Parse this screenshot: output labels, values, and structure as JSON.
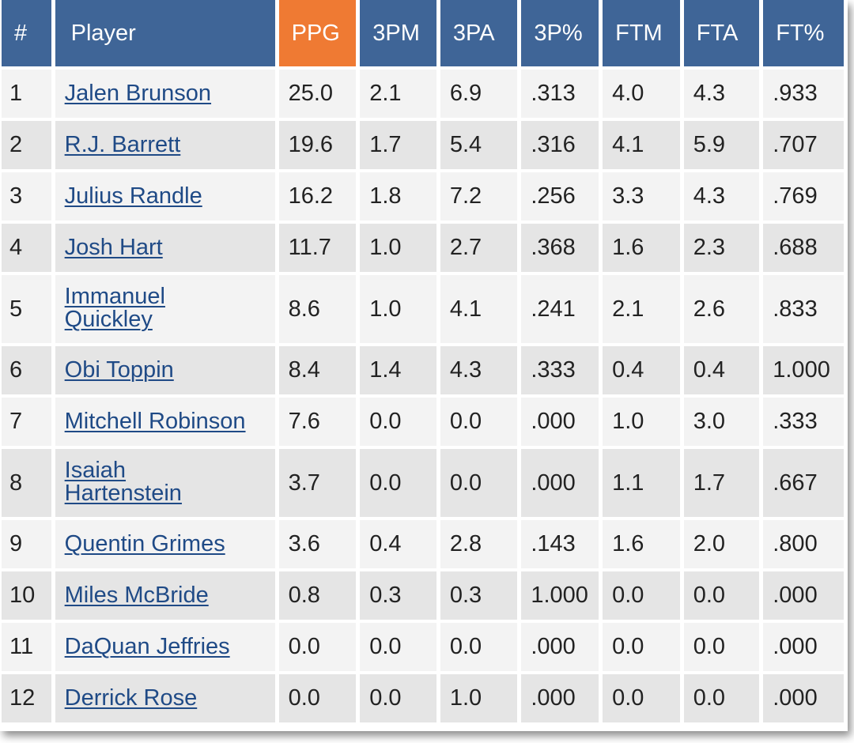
{
  "columns": [
    {
      "key": "num",
      "label": "#"
    },
    {
      "key": "player",
      "label": "Player"
    },
    {
      "key": "ppg",
      "label": "PPG",
      "sorted": true
    },
    {
      "key": "tpm",
      "label": "3PM"
    },
    {
      "key": "tpa",
      "label": "3PA"
    },
    {
      "key": "tp_pct",
      "label": "3P%"
    },
    {
      "key": "ftm",
      "label": "FTM"
    },
    {
      "key": "fta",
      "label": "FTA"
    },
    {
      "key": "ft_pct",
      "label": "FT%"
    }
  ],
  "sort_color": "#ef7a33",
  "header_color": "#3f6597",
  "link_color": "#1f4a86",
  "rows": [
    {
      "num": "1",
      "player": "Jalen Brunson",
      "ppg": "25.0",
      "tpm": "2.1",
      "tpa": "6.9",
      "tp_pct": ".313",
      "ftm": "4.0",
      "fta": "4.3",
      "ft_pct": ".933"
    },
    {
      "num": "2",
      "player": "R.J. Barrett",
      "ppg": "19.6",
      "tpm": "1.7",
      "tpa": "5.4",
      "tp_pct": ".316",
      "ftm": "4.1",
      "fta": "5.9",
      "ft_pct": ".707"
    },
    {
      "num": "3",
      "player": "Julius Randle",
      "ppg": "16.2",
      "tpm": "1.8",
      "tpa": "7.2",
      "tp_pct": ".256",
      "ftm": "3.3",
      "fta": "4.3",
      "ft_pct": ".769"
    },
    {
      "num": "4",
      "player": "Josh Hart",
      "ppg": "11.7",
      "tpm": "1.0",
      "tpa": "2.7",
      "tp_pct": ".368",
      "ftm": "1.6",
      "fta": "2.3",
      "ft_pct": ".688"
    },
    {
      "num": "5",
      "player": "Immanuel Quickley",
      "ppg": "8.6",
      "tpm": "1.0",
      "tpa": "4.1",
      "tp_pct": ".241",
      "ftm": "2.1",
      "fta": "2.6",
      "ft_pct": ".833"
    },
    {
      "num": "6",
      "player": "Obi Toppin",
      "ppg": "8.4",
      "tpm": "1.4",
      "tpa": "4.3",
      "tp_pct": ".333",
      "ftm": "0.4",
      "fta": "0.4",
      "ft_pct": "1.000"
    },
    {
      "num": "7",
      "player": "Mitchell Robinson",
      "ppg": "7.6",
      "tpm": "0.0",
      "tpa": "0.0",
      "tp_pct": ".000",
      "ftm": "1.0",
      "fta": "3.0",
      "ft_pct": ".333"
    },
    {
      "num": "8",
      "player": "Isaiah Hartenstein",
      "ppg": "3.7",
      "tpm": "0.0",
      "tpa": "0.0",
      "tp_pct": ".000",
      "ftm": "1.1",
      "fta": "1.7",
      "ft_pct": ".667"
    },
    {
      "num": "9",
      "player": "Quentin Grimes",
      "ppg": "3.6",
      "tpm": "0.4",
      "tpa": "2.8",
      "tp_pct": ".143",
      "ftm": "1.6",
      "fta": "2.0",
      "ft_pct": ".800"
    },
    {
      "num": "10",
      "player": "Miles McBride",
      "ppg": "0.8",
      "tpm": "0.3",
      "tpa": "0.3",
      "tp_pct": "1.000",
      "ftm": "0.0",
      "fta": "0.0",
      "ft_pct": ".000"
    },
    {
      "num": "11",
      "player": "DaQuan Jeffries",
      "ppg": "0.0",
      "tpm": "0.0",
      "tpa": "0.0",
      "tp_pct": ".000",
      "ftm": "0.0",
      "fta": "0.0",
      "ft_pct": ".000"
    },
    {
      "num": "12",
      "player": "Derrick Rose",
      "ppg": "0.0",
      "tpm": "0.0",
      "tpa": "1.0",
      "tp_pct": ".000",
      "ftm": "0.0",
      "fta": "0.0",
      "ft_pct": ".000"
    }
  ]
}
